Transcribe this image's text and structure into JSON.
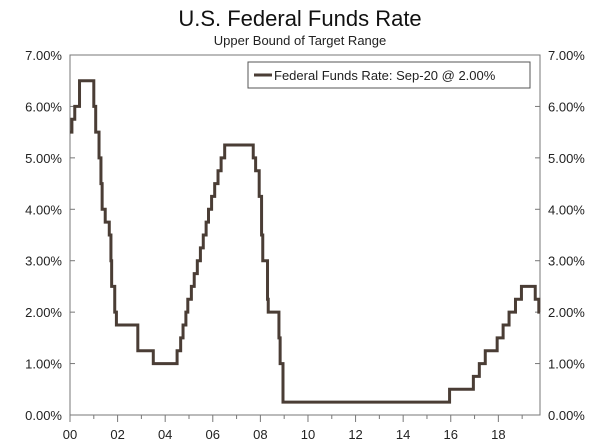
{
  "chart_data": {
    "type": "line",
    "title": "U.S. Federal Funds Rate",
    "subtitle": "Upper Bound of Target Range",
    "legend": "Federal Funds Rate: Sep-20 @ 2.00%",
    "legend_position": "top-right",
    "line_color": "#4a3d35",
    "ylim": [
      0,
      7
    ],
    "xlim": [
      2000,
      2019.75
    ],
    "y_ticks": [
      0,
      1,
      2,
      3,
      4,
      5,
      6,
      7
    ],
    "y_tick_labels": [
      "0.00%",
      "1.00%",
      "2.00%",
      "3.00%",
      "4.00%",
      "5.00%",
      "6.00%",
      "7.00%"
    ],
    "x_ticks": [
      2000,
      2002,
      2004,
      2006,
      2008,
      2010,
      2012,
      2014,
      2016,
      2018
    ],
    "x_tick_labels": [
      "00",
      "02",
      "04",
      "06",
      "08",
      "10",
      "12",
      "14",
      "16",
      "18"
    ],
    "series": [
      {
        "name": "Federal Funds Rate",
        "points": [
          [
            2000.0,
            5.5
          ],
          [
            2000.08,
            5.75
          ],
          [
            2000.2,
            6.0
          ],
          [
            2000.4,
            6.5
          ],
          [
            2001.0,
            6.0
          ],
          [
            2001.08,
            5.5
          ],
          [
            2001.22,
            5.0
          ],
          [
            2001.3,
            4.5
          ],
          [
            2001.35,
            4.0
          ],
          [
            2001.48,
            3.75
          ],
          [
            2001.65,
            3.5
          ],
          [
            2001.72,
            3.0
          ],
          [
            2001.75,
            2.5
          ],
          [
            2001.88,
            2.0
          ],
          [
            2001.95,
            1.75
          ],
          [
            2002.85,
            1.25
          ],
          [
            2003.5,
            1.0
          ],
          [
            2004.5,
            1.25
          ],
          [
            2004.65,
            1.5
          ],
          [
            2004.75,
            1.75
          ],
          [
            2004.87,
            2.0
          ],
          [
            2004.95,
            2.25
          ],
          [
            2005.1,
            2.5
          ],
          [
            2005.22,
            2.75
          ],
          [
            2005.35,
            3.0
          ],
          [
            2005.48,
            3.25
          ],
          [
            2005.6,
            3.5
          ],
          [
            2005.72,
            3.75
          ],
          [
            2005.82,
            4.0
          ],
          [
            2005.95,
            4.25
          ],
          [
            2006.08,
            4.5
          ],
          [
            2006.22,
            4.75
          ],
          [
            2006.35,
            5.0
          ],
          [
            2006.5,
            5.25
          ],
          [
            2007.7,
            5.0
          ],
          [
            2007.8,
            4.75
          ],
          [
            2007.95,
            4.25
          ],
          [
            2008.05,
            3.5
          ],
          [
            2008.1,
            3.0
          ],
          [
            2008.3,
            2.25
          ],
          [
            2008.33,
            2.0
          ],
          [
            2008.78,
            1.5
          ],
          [
            2008.83,
            1.0
          ],
          [
            2008.95,
            0.25
          ],
          [
            2015.95,
            0.5
          ],
          [
            2016.95,
            0.75
          ],
          [
            2017.2,
            1.0
          ],
          [
            2017.45,
            1.25
          ],
          [
            2017.95,
            1.5
          ],
          [
            2018.2,
            1.75
          ],
          [
            2018.45,
            2.0
          ],
          [
            2018.72,
            2.25
          ],
          [
            2018.97,
            2.5
          ],
          [
            2019.55,
            2.25
          ],
          [
            2019.7,
            2.0
          ],
          [
            2019.75,
            2.0
          ]
        ]
      }
    ]
  }
}
